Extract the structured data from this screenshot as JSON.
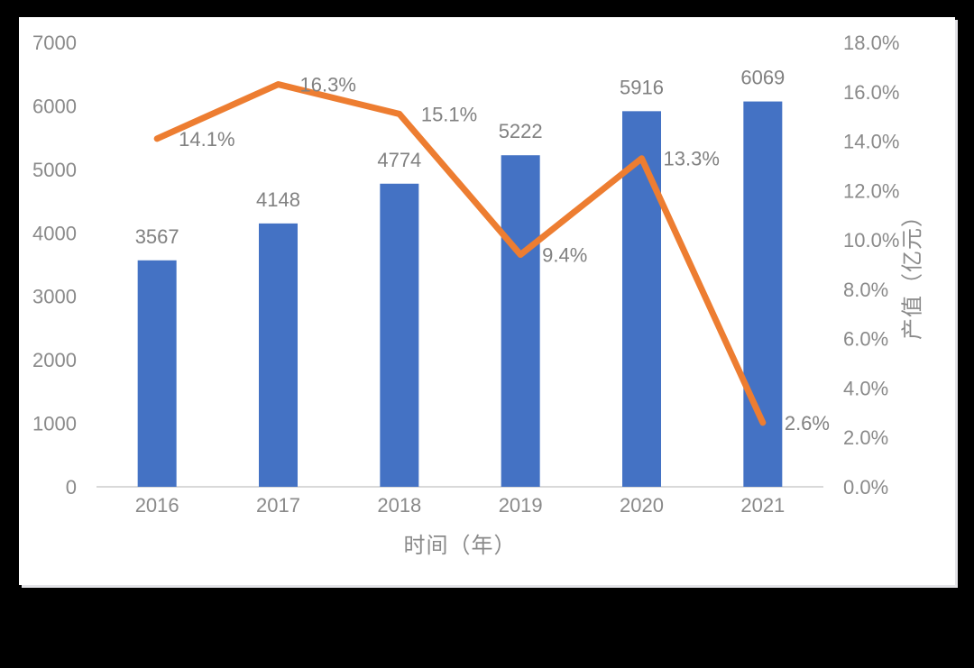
{
  "chart_data": {
    "type": "combo-bar-line",
    "categories": [
      "2016",
      "2017",
      "2018",
      "2019",
      "2020",
      "2021"
    ],
    "series": [
      {
        "type": "bar",
        "axis": "left",
        "values": [
          3567,
          4148,
          4774,
          5222,
          5916,
          6069
        ],
        "data_labels": [
          "3567",
          "4148",
          "4774",
          "5222",
          "5916",
          "6069"
        ],
        "color": "#4472C4"
      },
      {
        "type": "line",
        "axis": "right",
        "values": [
          14.1,
          16.3,
          15.1,
          9.4,
          13.3,
          2.6
        ],
        "data_labels": [
          "14.1%",
          "16.3%",
          "15.1%",
          "9.4%",
          "13.3%",
          "2.6%"
        ],
        "color": "#ED7D31"
      }
    ],
    "xlabel": "时间（年）",
    "ylabel_right": "产值（亿元）",
    "left_axis": {
      "min": 0,
      "max": 7000,
      "step": 1000,
      "tick_labels": [
        "0",
        "1000",
        "2000",
        "3000",
        "4000",
        "5000",
        "6000",
        "7000"
      ]
    },
    "right_axis": {
      "min": 0,
      "max": 18,
      "step": 2,
      "tick_labels": [
        "0.0%",
        "2.0%",
        "4.0%",
        "6.0%",
        "8.0%",
        "10.0%",
        "12.0%",
        "14.0%",
        "16.0%",
        "18.0%"
      ]
    },
    "grid": false,
    "legend_position": "none"
  },
  "style": {
    "bar_color": "#4472C4",
    "line_color": "#ED7D31",
    "tick_color": "#8a8a8a",
    "data_label_color": "#818181",
    "axis_line_color": "#d9d9d9",
    "panel_bg": "#ffffff",
    "page_bg": "#000000"
  }
}
